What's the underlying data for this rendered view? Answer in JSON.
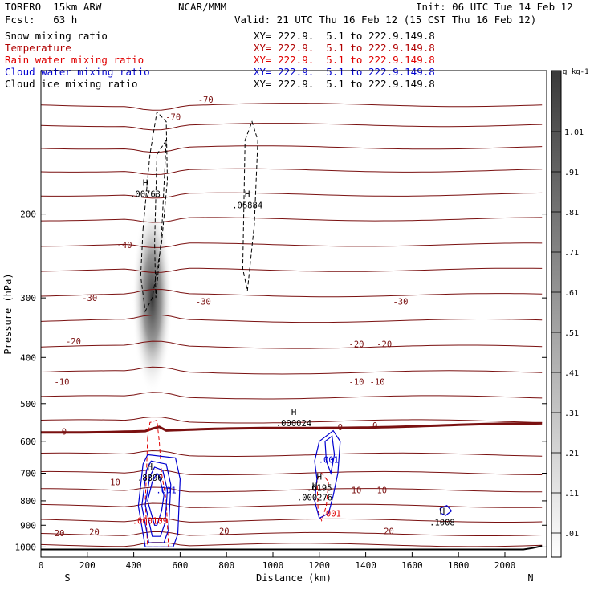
{
  "header": {
    "model": "TORERO  15km ARW",
    "org": "NCAR/MMM",
    "init": "Init: 06 UTC Tue 14 Feb 12",
    "fcst": "Fcst:   63 h",
    "valid": "Valid: 21 UTC Thu 16 Feb 12 (15 CST Thu 16 Feb 12)"
  },
  "fields": [
    {
      "name": "Snow mixing ratio",
      "color": "#000000",
      "xy": "XY= 222.9.  5.1 to 222.9.149.8"
    },
    {
      "name": "Temperature",
      "color": "#b00000",
      "xy": "XY= 222.9.  5.1 to 222.9.149.8"
    },
    {
      "name": "Rain water mixing ratio",
      "color": "#e00000",
      "xy": "XY= 222.9.  5.1 to 222.9.149.8"
    },
    {
      "name": "Cloud water mixing ratio",
      "color": "#0000d0",
      "xy": "XY= 222.9.  5.1 to 222.9.149.8"
    },
    {
      "name": "Cloud ice mixing ratio",
      "color": "#000000",
      "xy": "XY= 222.9.  5.1 to 222.9.149.8"
    }
  ],
  "colors": {
    "temperature": "#7a1010",
    "rain": "#e00000",
    "cloud_water": "#0000d0",
    "cloud_ice": "#000000",
    "terrain": "#000000"
  },
  "chart_data": {
    "type": "contour",
    "xlabel": "Distance (km)",
    "ylabel": "Pressure (hPa)",
    "xlim": [
      0,
      2180
    ],
    "ylim": [
      1050,
      100
    ],
    "y_scale": "log",
    "xticks": [
      "0",
      "200",
      "400",
      "600",
      "800",
      "1000",
      "1200",
      "1400",
      "1600",
      "1800",
      "2000"
    ],
    "yticks": [
      "200",
      "300",
      "400",
      "500",
      "600",
      "700",
      "800",
      "900",
      "1000"
    ],
    "x_end_labels": {
      "left": "S",
      "right": "N"
    },
    "colorbar": {
      "title": "g kg-1",
      "levels": [
        "1.01",
        ".91",
        ".81",
        ".71",
        ".61",
        ".51",
        ".41",
        ".31",
        ".21",
        ".11",
        ".01"
      ]
    },
    "temperature_contour_labels": [
      {
        "x": 570,
        "p": 125,
        "text": "-70"
      },
      {
        "x": 710,
        "p": 115,
        "text": "-70"
      },
      {
        "x": 360,
        "p": 232,
        "text": "-40"
      },
      {
        "x": 210,
        "p": 300,
        "text": "-30"
      },
      {
        "x": 700,
        "p": 305,
        "text": "-30"
      },
      {
        "x": 1550,
        "p": 305,
        "text": "-30"
      },
      {
        "x": 140,
        "p": 370,
        "text": "-20"
      },
      {
        "x": 1360,
        "p": 375,
        "text": "-20"
      },
      {
        "x": 1480,
        "p": 375,
        "text": "-20"
      },
      {
        "x": 90,
        "p": 450,
        "text": "-10"
      },
      {
        "x": 1360,
        "p": 450,
        "text": "-10"
      },
      {
        "x": 1450,
        "p": 450,
        "text": "-10"
      },
      {
        "x": 100,
        "p": 572,
        "text": "0"
      },
      {
        "x": 1290,
        "p": 560,
        "text": "0"
      },
      {
        "x": 1440,
        "p": 556,
        "text": "0"
      },
      {
        "x": 320,
        "p": 730,
        "text": "10"
      },
      {
        "x": 1360,
        "p": 760,
        "text": "10"
      },
      {
        "x": 1470,
        "p": 760,
        "text": "10"
      },
      {
        "x": 80,
        "p": 935,
        "text": "20"
      },
      {
        "x": 230,
        "p": 930,
        "text": "20"
      },
      {
        "x": 790,
        "p": 925,
        "text": "20"
      },
      {
        "x": 1500,
        "p": 925,
        "text": "20"
      }
    ],
    "extrema_labels": [
      {
        "x": 450,
        "p": 180,
        "marker": "H",
        "value": ".00763"
      },
      {
        "x": 890,
        "p": 190,
        "marker": "H",
        "value": ".06884"
      },
      {
        "x": 1090,
        "p": 545,
        "marker": "H",
        "value": ".000024"
      },
      {
        "x": 470,
        "p": 710,
        "marker": "H",
        "value": ".8896"
      },
      {
        "x": 1200,
        "p": 745,
        "marker": "H",
        "value": ".6195"
      },
      {
        "x": 1180,
        "p": 780,
        "marker": "H",
        "value": ".000276"
      },
      {
        "x": 1730,
        "p": 880,
        "marker": "H",
        "value": ".1008"
      }
    ],
    "contour_value_labels": [
      {
        "x": 540,
        "p": 760,
        "text": ".001",
        "color": "#0000d0"
      },
      {
        "x": 1240,
        "p": 655,
        "text": ".001",
        "color": "#0000d0"
      },
      {
        "x": 1250,
        "p": 850,
        "text": ".001",
        "color": "#e00000"
      },
      {
        "x": 470,
        "p": 880,
        "text": ".000109",
        "color": "#e00000"
      }
    ]
  }
}
